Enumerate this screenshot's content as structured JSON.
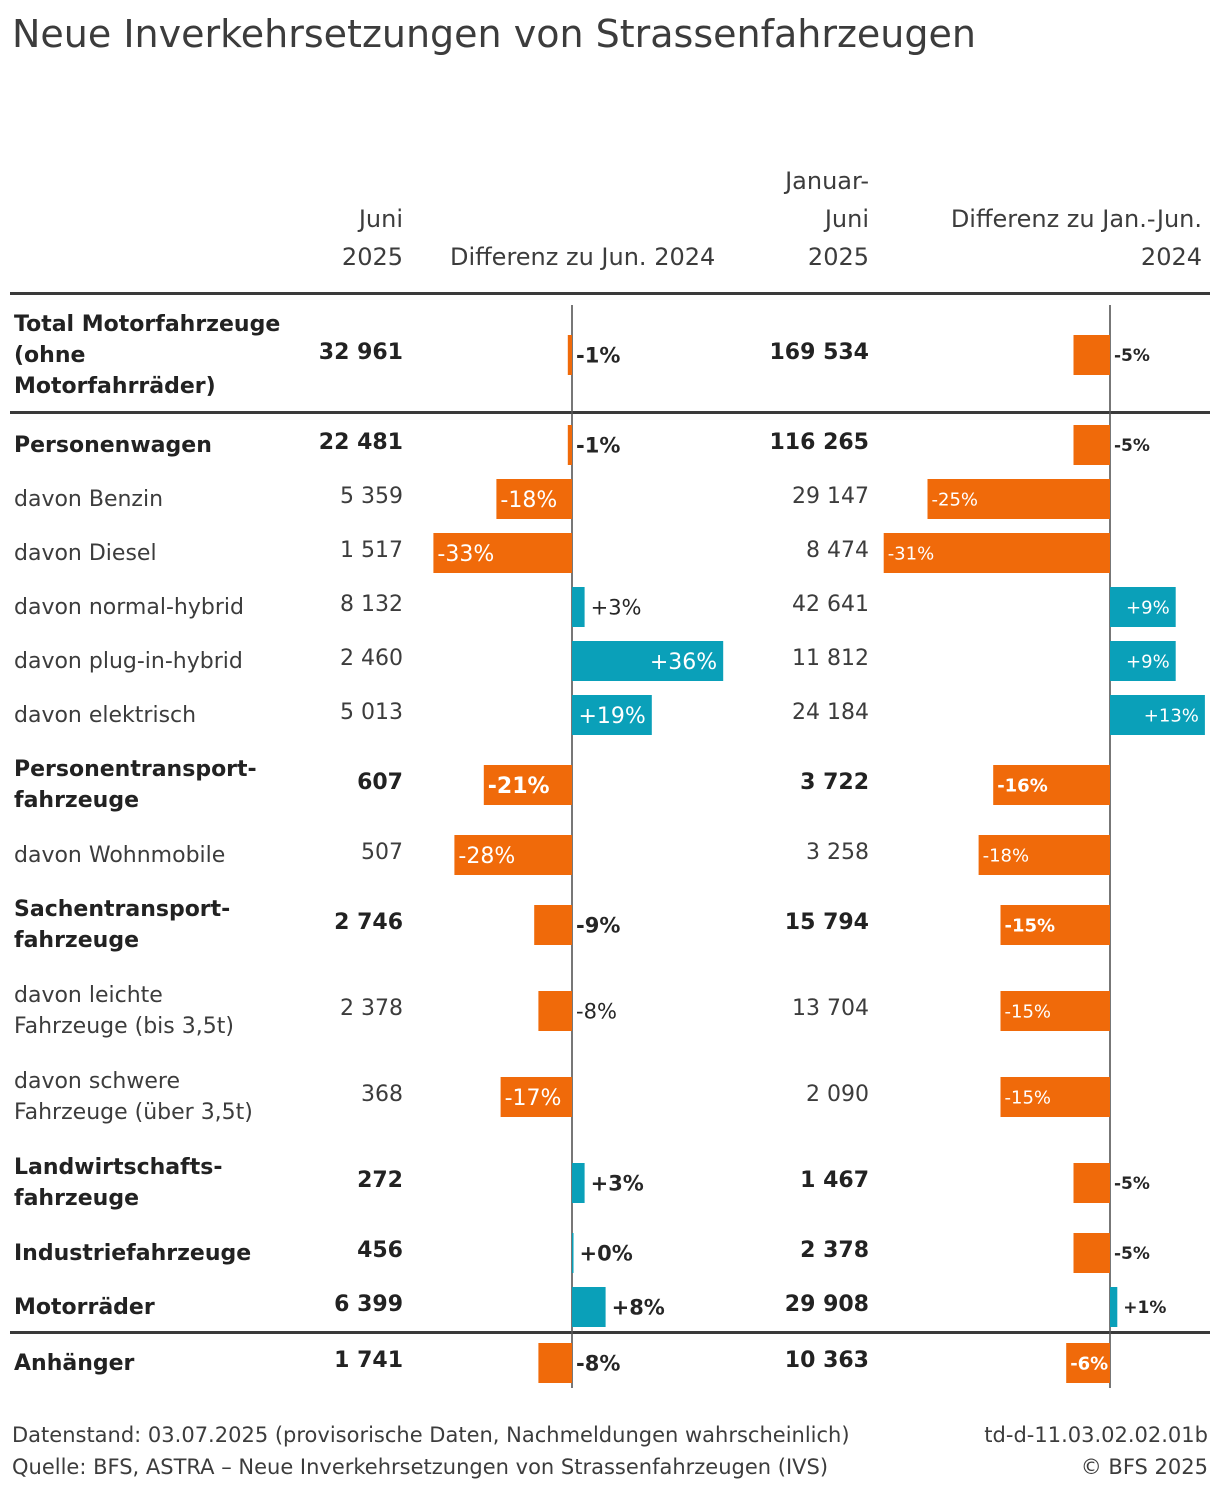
{
  "title": "Neue Inverkehrsetzungen von Strassenfahrzeugen",
  "headers": {
    "juni": "Juni\n2025",
    "diff_juni": "Differenz zu Jun. 2024",
    "janjuni": "Januar-\nJuni\n2025",
    "diff_janjuni": "Differenz zu Jan.-Jun.\n2024"
  },
  "colors": {
    "negative": "#f06a0a",
    "positive": "#0aa0b9",
    "axis": "#555555",
    "rule": "#3a3a3a"
  },
  "chart_data": {
    "type": "table",
    "columns": [
      "Juni 2025",
      "Differenz zu Jun. 2024",
      "Januar-Juni 2025",
      "Differenz zu Jan.-Jun. 2024"
    ],
    "rows": [
      {
        "label": "Total Motorfahrzeuge\n(ohne\nMotorfahrräder)",
        "bold": true,
        "juni": "32 961",
        "diff_juni": -1,
        "diff_juni_label": "-1%",
        "janjuni": "169 534",
        "diff_janjuni": -5,
        "diff_janjuni_label": "-5%"
      },
      {
        "label": "Personenwagen",
        "bold": true,
        "juni": "22 481",
        "diff_juni": -1,
        "diff_juni_label": "-1%",
        "janjuni": "116 265",
        "diff_janjuni": -5,
        "diff_janjuni_label": "-5%"
      },
      {
        "label": "davon Benzin",
        "bold": false,
        "juni": "5 359",
        "diff_juni": -18,
        "diff_juni_label": "-18%",
        "janjuni": "29 147",
        "diff_janjuni": -25,
        "diff_janjuni_label": "-25%"
      },
      {
        "label": "davon Diesel",
        "bold": false,
        "juni": "1 517",
        "diff_juni": -33,
        "diff_juni_label": "-33%",
        "janjuni": "8 474",
        "diff_janjuni": -31,
        "diff_janjuni_label": "-31%"
      },
      {
        "label": "davon normal-hybrid",
        "bold": false,
        "juni": "8 132",
        "diff_juni": 3,
        "diff_juni_label": "+3%",
        "janjuni": "42 641",
        "diff_janjuni": 9,
        "diff_janjuni_label": "+9%"
      },
      {
        "label": "davon plug-in-hybrid",
        "bold": false,
        "juni": "2 460",
        "diff_juni": 36,
        "diff_juni_label": "+36%",
        "janjuni": "11 812",
        "diff_janjuni": 9,
        "diff_janjuni_label": "+9%"
      },
      {
        "label": "davon elektrisch",
        "bold": false,
        "juni": "5 013",
        "diff_juni": 19,
        "diff_juni_label": "+19%",
        "janjuni": "24 184",
        "diff_janjuni": 13,
        "diff_janjuni_label": "+13%"
      },
      {
        "label": "Personentransport-\nfahrzeuge",
        "bold": true,
        "juni": "607",
        "diff_juni": -21,
        "diff_juni_label": "-21%",
        "janjuni": "3 722",
        "diff_janjuni": -16,
        "diff_janjuni_label": "-16%"
      },
      {
        "label": "davon Wohnmobile",
        "bold": false,
        "juni": "507",
        "diff_juni": -28,
        "diff_juni_label": "-28%",
        "janjuni": "3 258",
        "diff_janjuni": -18,
        "diff_janjuni_label": "-18%"
      },
      {
        "label": "Sachentransport-\nfahrzeuge",
        "bold": true,
        "juni": "2 746",
        "diff_juni": -9,
        "diff_juni_label": "-9%",
        "janjuni": "15 794",
        "diff_janjuni": -15,
        "diff_janjuni_label": "-15%"
      },
      {
        "label": "davon leichte\nFahrzeuge (bis 3,5t)",
        "bold": false,
        "juni": "2 378",
        "diff_juni": -8,
        "diff_juni_label": "-8%",
        "janjuni": "13 704",
        "diff_janjuni": -15,
        "diff_janjuni_label": "-15%"
      },
      {
        "label": "davon schwere\nFahrzeuge (über 3,5t)",
        "bold": false,
        "juni": "368",
        "diff_juni": -17,
        "diff_juni_label": "-17%",
        "janjuni": "2 090",
        "diff_janjuni": -15,
        "diff_janjuni_label": "-15%"
      },
      {
        "label": "Landwirtschafts-\nfahrzeuge",
        "bold": true,
        "juni": "272",
        "diff_juni": 3,
        "diff_juni_label": "+3%",
        "janjuni": "1 467",
        "diff_janjuni": -5,
        "diff_janjuni_label": "-5%"
      },
      {
        "label": "Industriefahrzeuge",
        "bold": true,
        "juni": "456",
        "diff_juni": 0,
        "diff_juni_label": "+0%",
        "janjuni": "2 378",
        "diff_janjuni": -5,
        "diff_janjuni_label": "-5%"
      },
      {
        "label": "Motorräder",
        "bold": true,
        "juni": "6 399",
        "diff_juni": 8,
        "diff_juni_label": "+8%",
        "janjuni": "29 908",
        "diff_janjuni": 1,
        "diff_janjuni_label": "+1%"
      },
      {
        "label": "Anhänger",
        "bold": true,
        "juni": "1 741",
        "diff_juni": -8,
        "diff_juni_label": "-8%",
        "janjuni": "10 363",
        "diff_janjuni": -6,
        "diff_janjuni_label": "-6%"
      }
    ]
  },
  "footer": {
    "datenstand": "Datenstand: 03.07.2025 (provisorische Daten, Nachmeldungen wahrscheinlich)",
    "quelle": "Quelle: BFS, ASTRA – Neue Inverkehrsetzungen von Strassenfahrzeugen (IVS)",
    "code": "td-d-11.03.02.02.01b",
    "copyright": "© BFS 2025"
  }
}
